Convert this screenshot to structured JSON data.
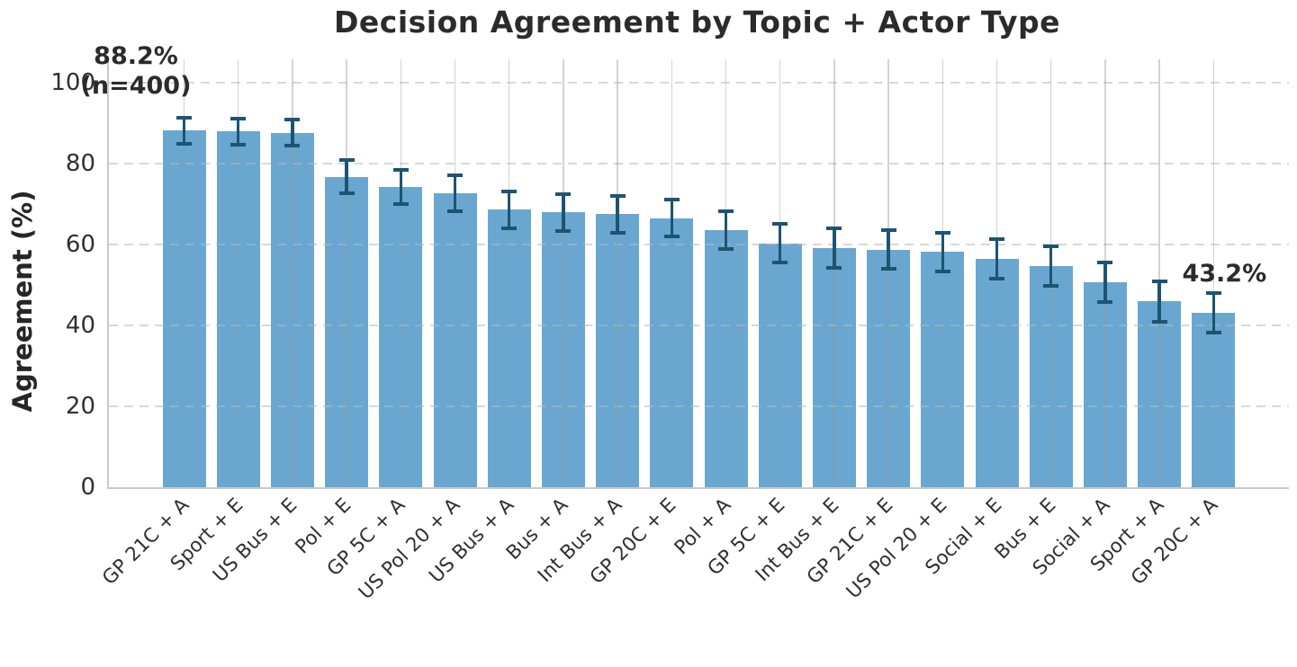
{
  "chart_data": {
    "type": "bar",
    "title": "Decision Agreement by Topic + Actor Type",
    "ylabel": "Agreement (%)",
    "xlabel": "",
    "ylim": [
      0,
      105
    ],
    "yticks": [
      0,
      20,
      40,
      60,
      80,
      100
    ],
    "grid": "dashed horizontal lines at y ticks, solid vertical lines at bar centers",
    "legend_position": "none",
    "categories": [
      "GP 21C + A",
      "Sport + E",
      "US Bus + E",
      "Pol + E",
      "GP 5C + A",
      "US Pol 20 + A",
      "US Bus + A",
      "Bus + A",
      "Int Bus + A",
      "GP 20C + E",
      "Pol + A",
      "GP 5C + E",
      "Int Bus + E",
      "GP 21C + E",
      "US Pol 20 + E",
      "Social + E",
      "Bus + E",
      "Social + A",
      "Sport + A",
      "GP 20C + A"
    ],
    "values": [
      88.2,
      87.9,
      87.6,
      76.7,
      74.2,
      72.7,
      68.6,
      67.9,
      67.5,
      66.5,
      63.6,
      60.3,
      59.1,
      58.7,
      58.2,
      56.4,
      54.7,
      50.7,
      45.9,
      43.2
    ],
    "error_bars": [
      3.2,
      3.2,
      3.2,
      4.1,
      4.3,
      4.4,
      4.6,
      4.6,
      4.6,
      4.6,
      4.7,
      4.8,
      4.8,
      4.8,
      4.8,
      4.9,
      4.9,
      4.9,
      4.9,
      4.9
    ],
    "annotations": [
      {
        "lines": [
          "88.2%",
          "(n=400)"
        ],
        "anchor_category": "GP 21C + A"
      },
      {
        "lines": [
          "43.2%"
        ],
        "anchor_category": "GP 20C + A"
      }
    ],
    "colors": {
      "bar": "#69A7D1",
      "error_bar": "#1D5472",
      "grid": "#CCCCCC",
      "spine": "#C9C9C9",
      "title_text": "#2B2B2B",
      "tick_text": "#303030"
    }
  }
}
